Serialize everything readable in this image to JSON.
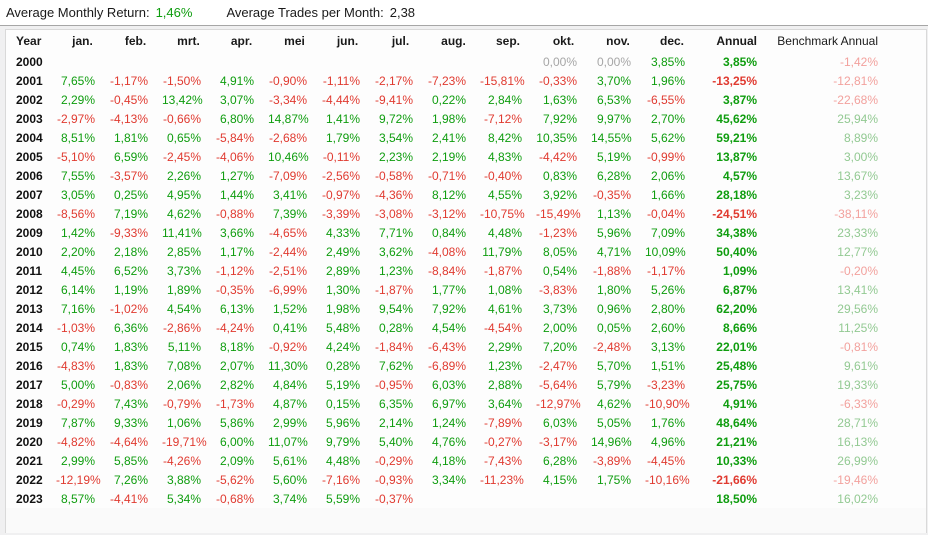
{
  "stats": {
    "avg_monthly_return_label": "Average Monthly Return:",
    "avg_monthly_return_value": "1,46%",
    "avg_trades_label": "Average Trades per Month:",
    "avg_trades_value": "2,38"
  },
  "colors": {
    "positive": "#0f9d0f",
    "negative": "#e03a30",
    "zero_gray": "#a6a6a6",
    "benchmark_positive": "#92c992",
    "benchmark_negative": "#f2a19d"
  },
  "table": {
    "columns": [
      "Year",
      "jan.",
      "feb.",
      "mrt.",
      "apr.",
      "mei",
      "jun.",
      "jul.",
      "aug.",
      "sep.",
      "okt.",
      "nov.",
      "dec.",
      "Annual",
      "Benchmark Annual"
    ],
    "rows": [
      {
        "year": "2000",
        "months": [
          "",
          "",
          "",
          "",
          "",
          "",
          "",
          "",
          "",
          "0,00%",
          "0,00%",
          "3,85%"
        ],
        "annual": "3,85%",
        "benchmark": "-1,42%"
      },
      {
        "year": "2001",
        "months": [
          "7,65%",
          "-1,17%",
          "-1,50%",
          "4,91%",
          "-0,90%",
          "-1,11%",
          "-2,17%",
          "-7,23%",
          "-15,81%",
          "-0,33%",
          "3,70%",
          "1,96%"
        ],
        "annual": "-13,25%",
        "benchmark": "-12,81%"
      },
      {
        "year": "2002",
        "months": [
          "2,29%",
          "-0,45%",
          "13,42%",
          "3,07%",
          "-3,34%",
          "-4,44%",
          "-9,41%",
          "0,22%",
          "2,84%",
          "1,63%",
          "6,53%",
          "-6,55%"
        ],
        "annual": "3,87%",
        "benchmark": "-22,68%"
      },
      {
        "year": "2003",
        "months": [
          "-2,97%",
          "-4,13%",
          "-0,66%",
          "6,80%",
          "14,87%",
          "1,41%",
          "9,72%",
          "1,98%",
          "-7,12%",
          "7,92%",
          "9,97%",
          "2,70%"
        ],
        "annual": "45,62%",
        "benchmark": "25,94%"
      },
      {
        "year": "2004",
        "months": [
          "8,51%",
          "1,81%",
          "0,65%",
          "-5,84%",
          "-2,68%",
          "1,79%",
          "3,54%",
          "2,41%",
          "8,42%",
          "10,35%",
          "14,55%",
          "5,62%"
        ],
        "annual": "59,21%",
        "benchmark": "8,89%"
      },
      {
        "year": "2005",
        "months": [
          "-5,10%",
          "6,59%",
          "-2,45%",
          "-4,06%",
          "10,46%",
          "-0,11%",
          "2,23%",
          "2,19%",
          "4,83%",
          "-4,42%",
          "5,19%",
          "-0,99%"
        ],
        "annual": "13,87%",
        "benchmark": "3,00%"
      },
      {
        "year": "2006",
        "months": [
          "7,55%",
          "-3,57%",
          "2,26%",
          "1,27%",
          "-7,09%",
          "-2,56%",
          "-0,58%",
          "-0,71%",
          "-0,40%",
          "0,83%",
          "6,28%",
          "2,06%"
        ],
        "annual": "4,57%",
        "benchmark": "13,67%"
      },
      {
        "year": "2007",
        "months": [
          "3,05%",
          "0,25%",
          "4,95%",
          "1,44%",
          "3,41%",
          "-0,97%",
          "-4,36%",
          "8,12%",
          "4,55%",
          "3,92%",
          "-0,35%",
          "1,66%"
        ],
        "annual": "28,18%",
        "benchmark": "3,23%"
      },
      {
        "year": "2008",
        "months": [
          "-8,56%",
          "7,19%",
          "4,62%",
          "-0,88%",
          "7,39%",
          "-3,39%",
          "-3,08%",
          "-3,12%",
          "-10,75%",
          "-15,49%",
          "1,13%",
          "-0,04%"
        ],
        "annual": "-24,51%",
        "benchmark": "-38,11%"
      },
      {
        "year": "2009",
        "months": [
          "1,42%",
          "-9,33%",
          "11,41%",
          "3,66%",
          "-4,65%",
          "4,33%",
          "7,71%",
          "0,84%",
          "4,48%",
          "-1,23%",
          "5,96%",
          "7,09%"
        ],
        "annual": "34,38%",
        "benchmark": "23,33%"
      },
      {
        "year": "2010",
        "months": [
          "2,20%",
          "2,18%",
          "2,85%",
          "1,17%",
          "-2,44%",
          "2,49%",
          "3,62%",
          "-4,08%",
          "11,79%",
          "8,05%",
          "4,71%",
          "10,09%"
        ],
        "annual": "50,40%",
        "benchmark": "12,77%"
      },
      {
        "year": "2011",
        "months": [
          "4,45%",
          "6,52%",
          "3,73%",
          "-1,12%",
          "-2,51%",
          "2,89%",
          "1,23%",
          "-8,84%",
          "-1,87%",
          "0,54%",
          "-1,88%",
          "-1,17%"
        ],
        "annual": "1,09%",
        "benchmark": "-0,20%"
      },
      {
        "year": "2012",
        "months": [
          "6,14%",
          "1,19%",
          "1,89%",
          "-0,35%",
          "-6,99%",
          "1,30%",
          "-1,87%",
          "1,77%",
          "1,08%",
          "-3,83%",
          "1,80%",
          "5,26%"
        ],
        "annual": "6,87%",
        "benchmark": "13,41%"
      },
      {
        "year": "2013",
        "months": [
          "7,16%",
          "-1,02%",
          "4,54%",
          "6,13%",
          "1,52%",
          "1,98%",
          "9,54%",
          "7,92%",
          "4,61%",
          "3,73%",
          "0,96%",
          "2,80%"
        ],
        "annual": "62,20%",
        "benchmark": "29,56%"
      },
      {
        "year": "2014",
        "months": [
          "-1,03%",
          "6,36%",
          "-2,86%",
          "-4,24%",
          "0,41%",
          "5,48%",
          "0,28%",
          "4,54%",
          "-4,54%",
          "2,00%",
          "0,05%",
          "2,60%"
        ],
        "annual": "8,66%",
        "benchmark": "11,25%"
      },
      {
        "year": "2015",
        "months": [
          "0,74%",
          "1,83%",
          "5,11%",
          "8,18%",
          "-0,92%",
          "4,24%",
          "-1,84%",
          "-6,43%",
          "2,29%",
          "7,20%",
          "-2,48%",
          "3,13%"
        ],
        "annual": "22,01%",
        "benchmark": "-0,81%"
      },
      {
        "year": "2016",
        "months": [
          "-4,83%",
          "1,83%",
          "7,08%",
          "2,07%",
          "11,30%",
          "0,28%",
          "7,62%",
          "-6,89%",
          "1,23%",
          "-2,47%",
          "5,70%",
          "1,51%"
        ],
        "annual": "25,48%",
        "benchmark": "9,61%"
      },
      {
        "year": "2017",
        "months": [
          "5,00%",
          "-0,83%",
          "2,06%",
          "2,82%",
          "4,84%",
          "5,19%",
          "-0,95%",
          "6,03%",
          "2,88%",
          "-5,64%",
          "5,79%",
          "-3,23%"
        ],
        "annual": "25,75%",
        "benchmark": "19,33%"
      },
      {
        "year": "2018",
        "months": [
          "-0,29%",
          "7,43%",
          "-0,79%",
          "-1,73%",
          "4,87%",
          "0,15%",
          "6,35%",
          "6,97%",
          "3,64%",
          "-12,97%",
          "4,62%",
          "-10,90%"
        ],
        "annual": "4,91%",
        "benchmark": "-6,33%"
      },
      {
        "year": "2019",
        "months": [
          "7,87%",
          "9,33%",
          "1,06%",
          "5,86%",
          "2,99%",
          "5,96%",
          "2,14%",
          "1,24%",
          "-7,89%",
          "6,03%",
          "5,05%",
          "1,76%"
        ],
        "annual": "48,64%",
        "benchmark": "28,71%"
      },
      {
        "year": "2020",
        "months": [
          "-4,82%",
          "-4,64%",
          "-19,71%",
          "6,00%",
          "11,07%",
          "9,79%",
          "5,40%",
          "4,76%",
          "-0,27%",
          "-3,17%",
          "14,96%",
          "4,96%"
        ],
        "annual": "21,21%",
        "benchmark": "16,13%"
      },
      {
        "year": "2021",
        "months": [
          "2,99%",
          "5,85%",
          "-4,26%",
          "2,09%",
          "5,61%",
          "4,48%",
          "-0,29%",
          "4,18%",
          "-7,43%",
          "6,28%",
          "-3,89%",
          "-4,45%"
        ],
        "annual": "10,33%",
        "benchmark": "26,99%"
      },
      {
        "year": "2022",
        "months": [
          "-12,19%",
          "7,26%",
          "3,88%",
          "-5,62%",
          "5,60%",
          "-7,16%",
          "-0,93%",
          "3,34%",
          "-11,23%",
          "4,15%",
          "1,75%",
          "-10,16%"
        ],
        "annual": "-21,66%",
        "benchmark": "-19,46%"
      },
      {
        "year": "2023",
        "months": [
          "8,57%",
          "-4,41%",
          "5,34%",
          "-0,68%",
          "3,74%",
          "5,59%",
          "-0,37%",
          "",
          "",
          "",
          "",
          ""
        ],
        "annual": "18,50%",
        "benchmark": "16,02%"
      }
    ]
  }
}
